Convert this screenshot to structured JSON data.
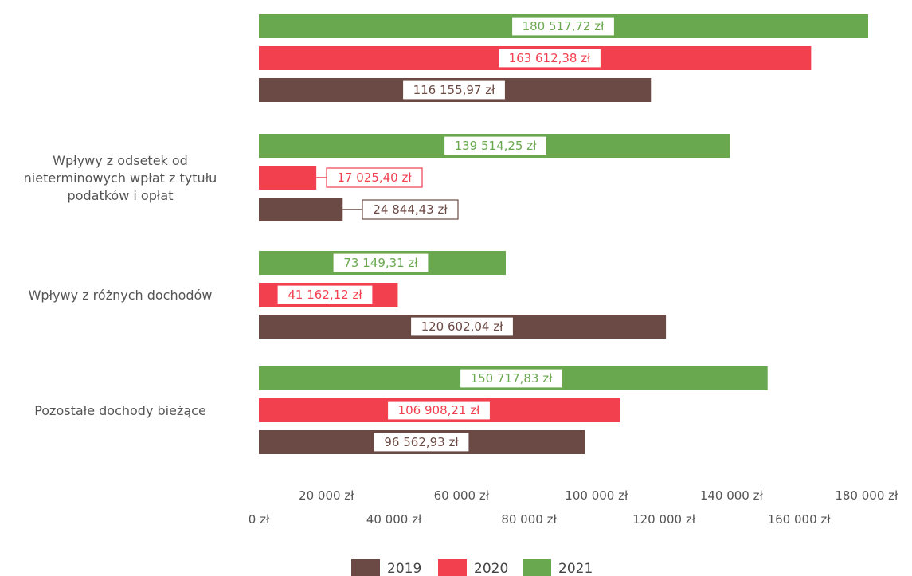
{
  "chart_data": {
    "type": "bar",
    "orientation": "horizontal",
    "categories": [
      [],
      [
        "Wpływy z odsetek od",
        "nieterminowych wpłat z tytułu",
        "podatków i opłat"
      ],
      [
        "Wpływy z różnych dochodów"
      ],
      [
        "Pozostałe dochody bieżące"
      ]
    ],
    "series": [
      {
        "name": "2021",
        "color": "#6aa84f",
        "values": [
          180517.72,
          139514.25,
          73149.31,
          150717.83
        ],
        "labels": [
          "180 517,72 zł",
          "139 514,25 zł",
          "73 149,31 zł",
          "150 717,83 zł"
        ]
      },
      {
        "name": "2020",
        "color": "#f2404f",
        "values": [
          163612.38,
          17025.4,
          41162.12,
          106908.21
        ],
        "labels": [
          "163 612,38 zł",
          "17 025,40 zł",
          "41 162,12 zł",
          "106 908,21 zł"
        ]
      },
      {
        "name": "2019",
        "color": "#6b4a45",
        "values": [
          116155.97,
          24844.43,
          120602.04,
          96562.93
        ],
        "labels": [
          "116 155,97 zł",
          "24 844,43 zł",
          "120 602,04 zł",
          "96 562,93 zł"
        ]
      }
    ],
    "xlim": [
      0,
      180000
    ],
    "x_ticks": [
      {
        "value": 0,
        "label": "0 zł"
      },
      {
        "value": 20000,
        "label": "20 000 zł"
      },
      {
        "value": 40000,
        "label": "40 000 zł"
      },
      {
        "value": 60000,
        "label": "60 000 zł"
      },
      {
        "value": 80000,
        "label": "80 000 zł"
      },
      {
        "value": 100000,
        "label": "100 000 zł"
      },
      {
        "value": 120000,
        "label": "120 000 zł"
      },
      {
        "value": 140000,
        "label": "140 000 zł"
      },
      {
        "value": 160000,
        "label": "160 000 zł"
      },
      {
        "value": 180000,
        "label": "180 000 zł"
      }
    ],
    "legend": {
      "placement": "bottom-center",
      "entries": [
        {
          "name": "2019",
          "color": "#6b4a45"
        },
        {
          "name": "2020",
          "color": "#f2404f"
        },
        {
          "name": "2021",
          "color": "#6aa84f"
        }
      ]
    },
    "grid": false
  }
}
